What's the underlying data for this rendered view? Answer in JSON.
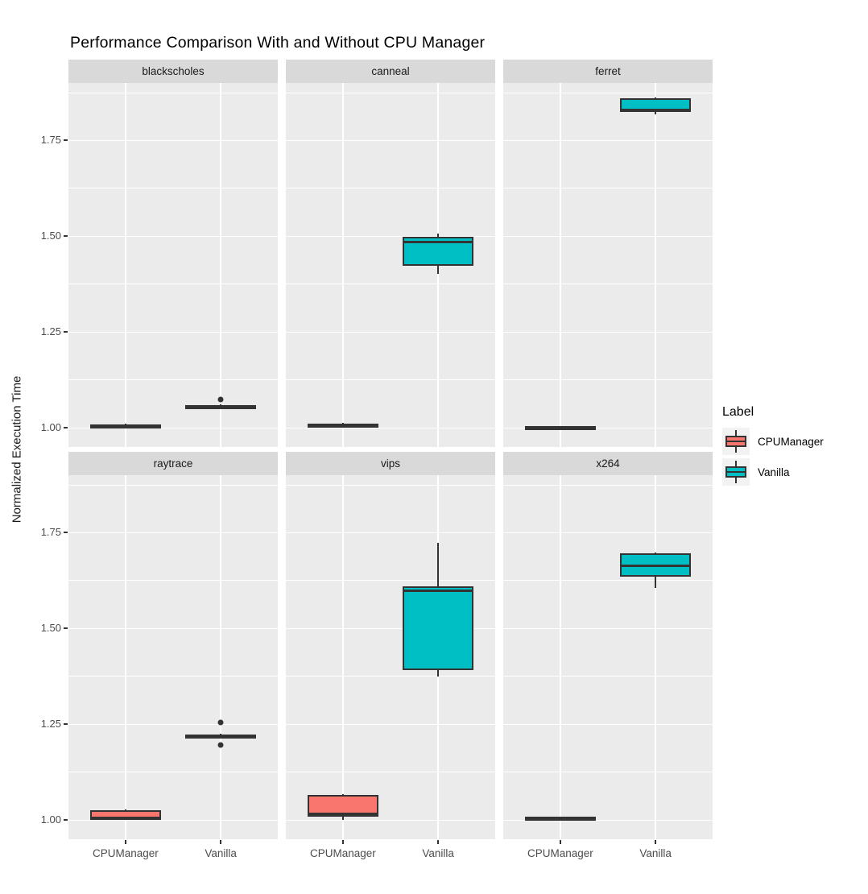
{
  "title": "Performance Comparison With and Without CPU Manager",
  "y_axis": {
    "title": "Normalized Execution Time",
    "min": 0.95,
    "max": 1.9,
    "major_ticks": [
      1.0,
      1.25,
      1.5,
      1.75
    ],
    "tick_labels": [
      "1.00",
      "1.25",
      "1.50",
      "1.75"
    ],
    "minor_ticks": [
      1.125,
      1.375,
      1.625,
      1.875
    ]
  },
  "x_axis": {
    "categories": [
      "CPUManager",
      "Vanilla"
    ]
  },
  "legend": {
    "title": "Label",
    "items": [
      {
        "label": "CPUManager",
        "color": "#F8766D"
      },
      {
        "label": "Vanilla",
        "color": "#00BFC4"
      }
    ]
  },
  "colors": {
    "panel_bg": "#EBEBEB",
    "strip_bg": "#D9D9D9",
    "grid": "#FFFFFF",
    "box_border": "#333333",
    "legend_key_bg": "#F2F2F2"
  },
  "chart_data": {
    "type": "boxplot",
    "facet_layout": {
      "rows": 2,
      "cols": 3
    },
    "grid": "on",
    "legend_position": "right",
    "facets": [
      {
        "name": "blackscholes",
        "boxes": [
          {
            "group": "CPUManager",
            "low": 1.001,
            "q1": 1.003,
            "median": 1.006,
            "q3": 1.009,
            "high": 1.011,
            "outliers": []
          },
          {
            "group": "Vanilla",
            "low": 1.052,
            "q1": 1.054,
            "median": 1.057,
            "q3": 1.06,
            "high": 1.062,
            "outliers": [
              1.075
            ]
          }
        ]
      },
      {
        "name": "canneal",
        "boxes": [
          {
            "group": "CPUManager",
            "low": 1.0,
            "q1": 1.002,
            "median": 1.006,
            "q3": 1.012,
            "high": 1.014,
            "outliers": []
          },
          {
            "group": "Vanilla",
            "low": 1.402,
            "q1": 1.422,
            "median": 1.485,
            "q3": 1.498,
            "high": 1.508,
            "outliers": []
          }
        ]
      },
      {
        "name": "ferret",
        "boxes": [
          {
            "group": "CPUManager",
            "low": 0.999,
            "q1": 1.0,
            "median": 1.002,
            "q3": 1.004,
            "high": 1.005,
            "outliers": []
          },
          {
            "group": "Vanilla",
            "low": 1.818,
            "q1": 1.825,
            "median": 1.83,
            "q3": 1.861,
            "high": 1.862,
            "outliers": []
          }
        ]
      },
      {
        "name": "raytrace",
        "boxes": [
          {
            "group": "CPUManager",
            "low": 1.0,
            "q1": 1.001,
            "median": 1.006,
            "q3": 1.025,
            "high": 1.027,
            "outliers": []
          },
          {
            "group": "Vanilla",
            "low": 1.215,
            "q1": 1.217,
            "median": 1.22,
            "q3": 1.223,
            "high": 1.225,
            "outliers": [
              1.255,
              1.195
            ]
          }
        ]
      },
      {
        "name": "vips",
        "boxes": [
          {
            "group": "CPUManager",
            "low": 1.0,
            "q1": 1.008,
            "median": 1.016,
            "q3": 1.066,
            "high": 1.068,
            "outliers": []
          },
          {
            "group": "Vanilla",
            "low": 1.375,
            "q1": 1.392,
            "median": 1.598,
            "q3": 1.61,
            "high": 1.723,
            "outliers": []
          }
        ]
      },
      {
        "name": "x264",
        "boxes": [
          {
            "group": "CPUManager",
            "low": 1.001,
            "q1": 1.002,
            "median": 1.005,
            "q3": 1.008,
            "high": 1.009,
            "outliers": []
          },
          {
            "group": "Vanilla",
            "low": 1.605,
            "q1": 1.635,
            "median": 1.663,
            "q3": 1.697,
            "high": 1.698,
            "outliers": []
          }
        ]
      }
    ]
  }
}
